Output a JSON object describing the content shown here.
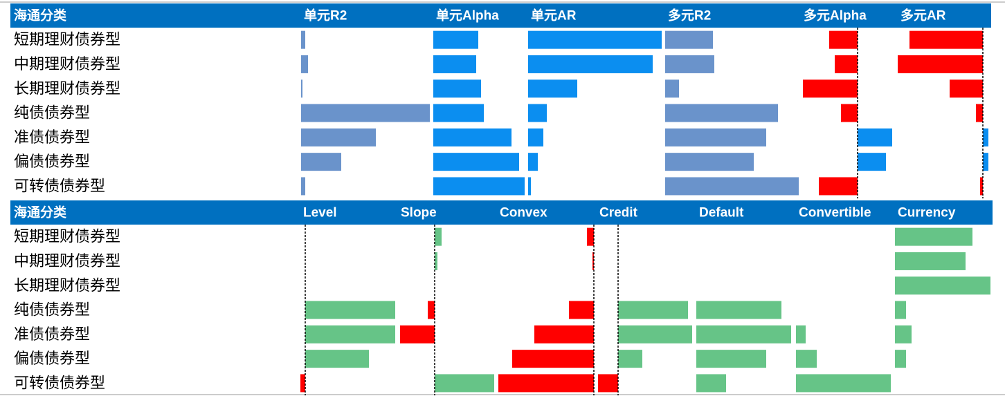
{
  "chart_data": [
    {
      "type": "table-bars",
      "header": "海通分类",
      "categories": [
        "短期理财债券型",
        "中期理财债券型",
        "长期理财债券型",
        "纯债债券型",
        "准债债券型",
        "偏债债券型",
        "可转债债券型"
      ],
      "negative_color": "#ff0000",
      "columns": [
        {
          "name": "单元R2",
          "color": "#6a93cb",
          "xlim": [
            0,
            189
          ],
          "values": [
            6,
            10,
            2,
            186,
            108,
            58,
            6
          ]
        },
        {
          "name": "单元Alpha",
          "color": "#0b8ef0",
          "xlim": [
            0,
            135
          ],
          "values": [
            65,
            62,
            69,
            73,
            113,
            124,
            132
          ]
        },
        {
          "name": "单元AR",
          "color": "#0b8ef0",
          "xlim": [
            0,
            196
          ],
          "values": [
            193,
            180,
            71,
            27,
            22,
            14,
            4
          ]
        },
        {
          "name": "多元R2",
          "color": "#6a93cb",
          "xlim": [
            0,
            196
          ],
          "values": [
            69,
            71,
            20,
            163,
            146,
            128,
            193
          ]
        },
        {
          "name": "多元Alpha",
          "color": "#0b8ef0",
          "xlim": [
            -82,
            56
          ],
          "values": [
            -41,
            -33,
            -79,
            -24,
            50,
            41,
            -56
          ]
        },
        {
          "name": "多元AR",
          "color": "#0b8ef0",
          "xlim": [
            -123,
            12
          ],
          "values": [
            -106,
            -123,
            -48,
            -10,
            8,
            8,
            -4
          ]
        }
      ]
    },
    {
      "type": "table-bars",
      "header": "海通分类",
      "categories": [
        "短期理财债券型",
        "中期理财债券型",
        "长期理财债券型",
        "纯债债券型",
        "准债债券型",
        "偏债债券型",
        "可转债债券型"
      ],
      "negative_color": "#ff0000",
      "columns": [
        {
          "name": "Level",
          "color": "#66c487",
          "xlim": [
            -7,
            134
          ],
          "values": [
            0,
            0,
            0,
            130,
            130,
            92,
            -7
          ]
        },
        {
          "name": "Slope",
          "color": "#66c487",
          "xlim": [
            -53,
            90
          ],
          "values": [
            10,
            4,
            0,
            -10,
            -50,
            0,
            86
          ]
        },
        {
          "name": "Convex",
          "color": "#66c487",
          "xlim": [
            -140,
            2
          ],
          "values": [
            -10,
            -2,
            0,
            -36,
            -86,
            -118,
            -138
          ]
        },
        {
          "name": "Credit",
          "color": "#66c487",
          "xlim": [
            -31,
            112
          ],
          "values": [
            0,
            0,
            0,
            101,
            107,
            35,
            -29
          ]
        },
        {
          "name": "Default",
          "color": "#66c487",
          "xlim": [
            0,
            142
          ],
          "values": [
            0,
            0,
            0,
            123,
            137,
            101,
            43
          ]
        },
        {
          "name": "Convertible",
          "color": "#66c487",
          "xlim": [
            0,
            142
          ],
          "values": [
            0,
            0,
            0,
            0,
            14,
            30,
            137
          ]
        },
        {
          "name": "Currency",
          "color": "#66c487",
          "xlim": [
            0,
            141
          ],
          "values": [
            112,
            102,
            138,
            16,
            24,
            16,
            0
          ]
        }
      ]
    }
  ]
}
